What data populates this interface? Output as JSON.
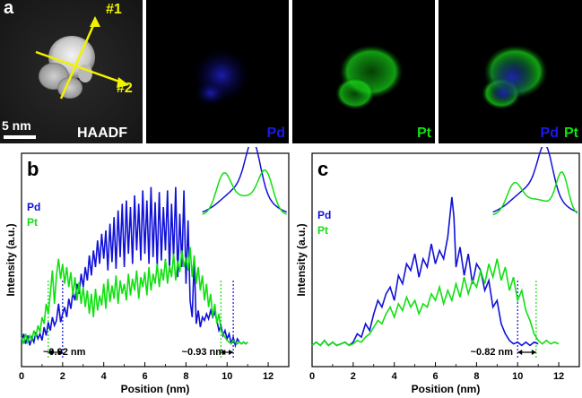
{
  "panel_a": {
    "label": "a",
    "scale_bar": "5 nm",
    "haadf_label": "HAADF",
    "arrow1_label": "#1",
    "arrow2_label": "#2",
    "map_pd_label": "Pd",
    "map_pt_label": "Pt",
    "overlay_pd_label": "Pd",
    "overlay_pt_label": "Pt"
  },
  "colors": {
    "pd": "#1010d8",
    "pt": "#10e010",
    "arrow": "#f2f200"
  },
  "chart_data": [
    {
      "type": "line",
      "panel_label": "b",
      "xlabel": "Position (nm)",
      "ylabel": "Intensity (a.u.)",
      "xlim": [
        0,
        13
      ],
      "xticks": [
        "0",
        "2",
        "4",
        "6",
        "8",
        "10",
        "12"
      ],
      "series": [
        {
          "name": "Pd",
          "x": [
            0,
            0.1,
            0.2,
            0.3,
            0.4,
            0.5,
            0.6,
            0.7,
            0.8,
            0.9,
            1.0,
            1.1,
            1.2,
            1.3,
            1.4,
            1.5,
            1.6,
            1.7,
            1.8,
            1.9,
            2.0,
            2.1,
            2.2,
            2.3,
            2.4,
            2.5,
            2.6,
            2.7,
            2.8,
            2.9,
            3.0,
            3.1,
            3.2,
            3.3,
            3.4,
            3.5,
            3.6,
            3.7,
            3.8,
            3.9,
            4.0,
            4.1,
            4.2,
            4.3,
            4.4,
            4.5,
            4.6,
            4.7,
            4.8,
            4.9,
            5.0,
            5.1,
            5.2,
            5.3,
            5.4,
            5.5,
            5.6,
            5.7,
            5.8,
            5.9,
            6.0,
            6.1,
            6.2,
            6.3,
            6.4,
            6.5,
            6.6,
            6.7,
            6.8,
            6.9,
            7.0,
            7.1,
            7.2,
            7.3,
            7.4,
            7.5,
            7.6,
            7.7,
            7.8,
            7.9,
            8.0,
            8.1,
            8.2,
            8.3,
            8.4,
            8.5,
            8.6,
            8.7,
            8.8,
            8.9,
            9.0,
            9.1,
            9.2,
            9.3,
            9.4,
            9.5,
            9.6,
            9.7,
            9.8,
            9.9,
            10.0,
            10.1,
            10.2,
            10.3,
            10.4,
            10.5,
            10.6,
            10.7,
            10.8,
            10.9,
            11.0
          ],
          "y": [
            0.05,
            0.1,
            0.04,
            0.09,
            0.03,
            0.08,
            0.05,
            0.11,
            0.07,
            0.1,
            0.06,
            0.14,
            0.09,
            0.17,
            0.12,
            0.2,
            0.15,
            0.18,
            0.28,
            0.17,
            0.22,
            0.26,
            0.2,
            0.31,
            0.25,
            0.35,
            0.3,
            0.4,
            0.34,
            0.46,
            0.38,
            0.5,
            0.42,
            0.57,
            0.45,
            0.6,
            0.5,
            0.66,
            0.52,
            0.7,
            0.55,
            0.72,
            0.48,
            0.76,
            0.53,
            0.8,
            0.49,
            0.84,
            0.56,
            0.88,
            0.5,
            0.9,
            0.58,
            0.86,
            0.52,
            0.93,
            0.6,
            0.88,
            0.54,
            0.96,
            0.58,
            0.9,
            0.52,
            0.98,
            0.56,
            0.89,
            0.5,
            0.95,
            0.54,
            0.86,
            0.6,
            0.96,
            0.47,
            0.88,
            0.55,
            0.98,
            0.44,
            0.82,
            0.5,
            0.96,
            0.4,
            0.78,
            0.3,
            0.2,
            0.55,
            0.16,
            0.24,
            0.14,
            0.2,
            0.18,
            0.22,
            0.19,
            0.24,
            0.2,
            0.23,
            0.18,
            0.12,
            0.15,
            0.09,
            0.12,
            0.07,
            0.1,
            0.04,
            0.08,
            0.03,
            0.07,
            0.05,
            0.04,
            0.05,
            0.04,
            0.05
          ]
        },
        {
          "name": "Pt",
          "x": [
            0,
            0.1,
            0.2,
            0.3,
            0.4,
            0.5,
            0.6,
            0.7,
            0.8,
            0.9,
            1.0,
            1.1,
            1.2,
            1.3,
            1.4,
            1.5,
            1.6,
            1.7,
            1.8,
            1.9,
            2.0,
            2.1,
            2.2,
            2.3,
            2.4,
            2.5,
            2.6,
            2.7,
            2.8,
            2.9,
            3.0,
            3.1,
            3.2,
            3.3,
            3.4,
            3.5,
            3.6,
            3.7,
            3.8,
            3.9,
            4.0,
            4.1,
            4.2,
            4.3,
            4.4,
            4.5,
            4.6,
            4.7,
            4.8,
            4.9,
            5.0,
            5.1,
            5.2,
            5.3,
            5.4,
            5.5,
            5.6,
            5.7,
            5.8,
            5.9,
            6.0,
            6.1,
            6.2,
            6.3,
            6.4,
            6.5,
            6.6,
            6.7,
            6.8,
            6.9,
            7.0,
            7.1,
            7.2,
            7.3,
            7.4,
            7.5,
            7.6,
            7.7,
            7.8,
            7.9,
            8.0,
            8.1,
            8.2,
            8.3,
            8.4,
            8.5,
            8.6,
            8.7,
            8.8,
            8.9,
            9.0,
            9.1,
            9.2,
            9.3,
            9.4,
            9.5,
            9.6,
            9.7,
            9.8,
            9.9,
            10.0,
            10.1,
            10.2,
            10.3,
            10.4,
            10.5,
            10.6,
            10.7,
            10.8,
            10.9,
            11.0
          ],
          "y": [
            0.08,
            0.04,
            0.1,
            0.05,
            0.09,
            0.06,
            0.12,
            0.08,
            0.15,
            0.11,
            0.2,
            0.16,
            0.28,
            0.22,
            0.34,
            0.48,
            0.28,
            0.45,
            0.55,
            0.43,
            0.52,
            0.4,
            0.5,
            0.38,
            0.47,
            0.33,
            0.44,
            0.3,
            0.41,
            0.28,
            0.38,
            0.26,
            0.36,
            0.22,
            0.34,
            0.2,
            0.37,
            0.24,
            0.33,
            0.27,
            0.4,
            0.25,
            0.43,
            0.29,
            0.39,
            0.31,
            0.45,
            0.28,
            0.42,
            0.34,
            0.4,
            0.3,
            0.46,
            0.33,
            0.43,
            0.36,
            0.48,
            0.31,
            0.44,
            0.38,
            0.47,
            0.33,
            0.5,
            0.36,
            0.46,
            0.4,
            0.52,
            0.38,
            0.49,
            0.42,
            0.55,
            0.4,
            0.51,
            0.44,
            0.58,
            0.42,
            0.54,
            0.47,
            0.6,
            0.5,
            0.56,
            0.48,
            0.62,
            0.44,
            0.57,
            0.4,
            0.5,
            0.36,
            0.45,
            0.3,
            0.4,
            0.26,
            0.34,
            0.2,
            0.28,
            0.16,
            0.22,
            0.12,
            0.1,
            0.08,
            0.06,
            0.05,
            0.04,
            0.06,
            0.05,
            0.04,
            0.05,
            0.04,
            0.05,
            0.04,
            0.05
          ]
        }
      ],
      "legend": [
        "Pd",
        "Pt"
      ],
      "legend_position": "left",
      "annotations": [
        "~0.92 nm",
        "~0.93 nm"
      ],
      "guide_lines_x": [
        1.3,
        2.0,
        9.7,
        10.3
      ]
    },
    {
      "type": "line",
      "panel_label": "c",
      "xlabel": "Position (nm)",
      "ylabel": "Intensity (a.u.)",
      "xlim": [
        0,
        13
      ],
      "xticks": [
        "0",
        "2",
        "4",
        "6",
        "8",
        "10",
        "12"
      ],
      "series": [
        {
          "name": "Pd",
          "x": [
            0,
            0.2,
            0.4,
            0.6,
            0.8,
            1.0,
            1.2,
            1.4,
            1.6,
            1.8,
            2.0,
            2.2,
            2.4,
            2.6,
            2.8,
            3.0,
            3.2,
            3.4,
            3.6,
            3.8,
            4.0,
            4.2,
            4.4,
            4.6,
            4.8,
            5.0,
            5.2,
            5.4,
            5.6,
            5.8,
            6.0,
            6.2,
            6.4,
            6.6,
            6.8,
            6.9,
            7.0,
            7.2,
            7.4,
            7.6,
            7.8,
            8.0,
            8.2,
            8.4,
            8.6,
            8.8,
            9.0,
            9.2,
            9.4,
            9.6,
            9.8,
            10.0,
            10.2,
            10.4,
            10.6,
            10.8,
            11.0
          ],
          "y": [
            0.03,
            0.05,
            0.03,
            0.06,
            0.03,
            0.05,
            0.03,
            0.04,
            0.05,
            0.03,
            0.05,
            0.1,
            0.08,
            0.16,
            0.12,
            0.22,
            0.3,
            0.26,
            0.34,
            0.38,
            0.3,
            0.45,
            0.4,
            0.52,
            0.48,
            0.58,
            0.44,
            0.55,
            0.5,
            0.64,
            0.52,
            0.6,
            0.55,
            0.68,
            0.92,
            0.8,
            0.5,
            0.62,
            0.45,
            0.58,
            0.4,
            0.52,
            0.48,
            0.36,
            0.42,
            0.26,
            0.3,
            0.16,
            0.1,
            0.06,
            0.04,
            0.05,
            0.03,
            0.05,
            0.03,
            0.05,
            0.04
          ]
        },
        {
          "name": "Pt",
          "x": [
            0,
            0.2,
            0.4,
            0.6,
            0.8,
            1.0,
            1.2,
            1.4,
            1.6,
            1.8,
            2.0,
            2.2,
            2.4,
            2.6,
            2.8,
            3.0,
            3.2,
            3.4,
            3.6,
            3.8,
            4.0,
            4.2,
            4.4,
            4.6,
            4.8,
            5.0,
            5.2,
            5.4,
            5.6,
            5.8,
            6.0,
            6.2,
            6.4,
            6.6,
            6.8,
            7.0,
            7.2,
            7.4,
            7.6,
            7.8,
            8.0,
            8.2,
            8.4,
            8.6,
            8.8,
            9.0,
            9.2,
            9.4,
            9.6,
            9.8,
            10.0,
            10.2,
            10.4,
            10.6,
            10.8,
            11.0,
            11.2,
            11.4,
            11.6,
            11.8,
            12.0
          ],
          "y": [
            0.03,
            0.05,
            0.03,
            0.06,
            0.03,
            0.05,
            0.03,
            0.04,
            0.05,
            0.03,
            0.04,
            0.06,
            0.05,
            0.08,
            0.1,
            0.14,
            0.18,
            0.16,
            0.22,
            0.26,
            0.2,
            0.28,
            0.24,
            0.32,
            0.26,
            0.3,
            0.22,
            0.28,
            0.26,
            0.34,
            0.3,
            0.38,
            0.28,
            0.36,
            0.3,
            0.4,
            0.32,
            0.44,
            0.34,
            0.42,
            0.38,
            0.48,
            0.4,
            0.52,
            0.44,
            0.55,
            0.42,
            0.5,
            0.36,
            0.44,
            0.3,
            0.36,
            0.24,
            0.18,
            0.1,
            0.06,
            0.04,
            0.06,
            0.04,
            0.05,
            0.04
          ]
        }
      ],
      "legend": [
        "Pd",
        "Pt"
      ],
      "legend_position": "left",
      "annotations": [
        "~0.82 nm"
      ],
      "guide_lines_x": [
        10.0,
        10.9
      ]
    }
  ]
}
